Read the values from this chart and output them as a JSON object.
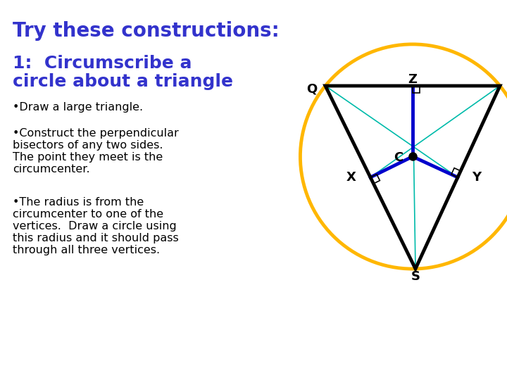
{
  "title": "Try these constructions:",
  "title_color": "#3333cc",
  "title_fontsize": 20,
  "subtitle_line1": "1:  Circumscribe a",
  "subtitle_line2": "circle about a triangle",
  "subtitle_color": "#3333cc",
  "subtitle_fontsize": 18,
  "bullet1": "•Draw a large triangle.",
  "bullet2_line1": "•Construct the perpendicular",
  "bullet2_line2": "bisectors of any two sides.",
  "bullet2_line3": "The point they meet is the",
  "bullet2_line4": "circumcenter.",
  "bullet3_line1": "•The radius is from the",
  "bullet3_line2": "circumcenter to one of the",
  "bullet3_line3": "vertices.  Draw a circle using",
  "bullet3_line4": "this radius and it should pass",
  "bullet3_line5": "through all three vertices.",
  "bullet_color": "#000000",
  "bullet_fontsize": 11.5,
  "bg_color": "#ffffff",
  "circle_color": "#FFB700",
  "triangle_color": "#000000",
  "bisector_color": "#0000cc",
  "construction_color": "#00BBAA",
  "label_color": "#000000"
}
